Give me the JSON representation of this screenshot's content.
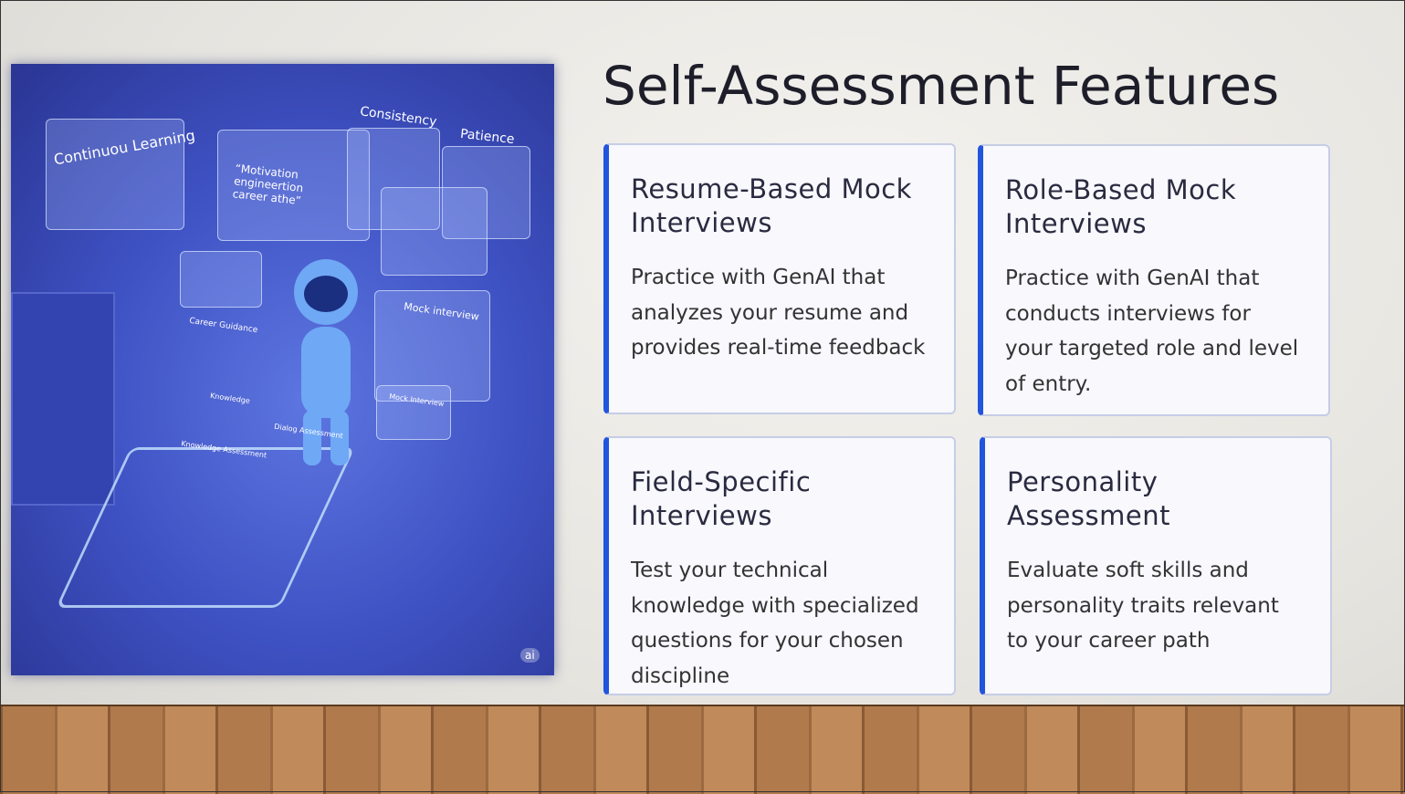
{
  "header": {
    "title": "Self-Assessment Features"
  },
  "illustration": {
    "labels": [
      "Continuou Learning",
      "Consistency",
      "Patience",
      "“Motivation engineertion career athe”",
      "Mock interview",
      "Career Guidance",
      "Knowledge",
      "Mock Interview",
      "Dialog Assessment",
      "Knowledge Assessment",
      "ai"
    ]
  },
  "cards": [
    {
      "title": "Resume-Based Mock Interviews",
      "text": "Practice with GenAI that analyzes your resume and provides real-time feedback"
    },
    {
      "title": "Role-Based Mock Interviews",
      "text": "Practice with GenAI that conducts interviews for your targeted role and level of entry."
    },
    {
      "title": "Field-Specific Interviews",
      "text": "Test your technical knowledge with specialized questions for your chosen discipline"
    },
    {
      "title": "Personality Assessment",
      "text": "Evaluate soft skills and personality traits relevant to your career path"
    }
  ]
}
